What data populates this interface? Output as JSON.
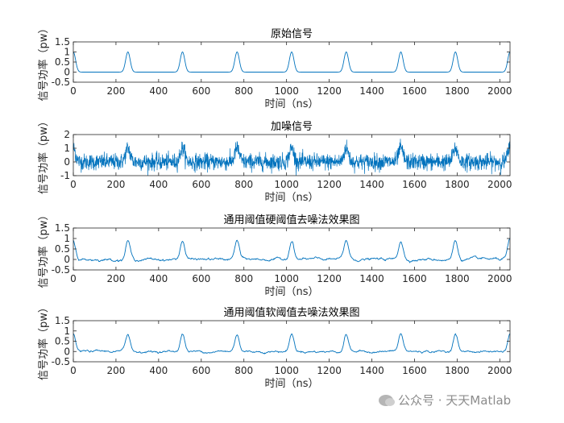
{
  "chart_data": [
    {
      "type": "line",
      "title": "原始信号",
      "xlabel": "时间（ns）",
      "ylabel": "信号功率（pw）",
      "xlim": [
        0,
        2048
      ],
      "ylim": [
        -0.5,
        1.5
      ],
      "xticks": [
        0,
        200,
        400,
        600,
        800,
        1000,
        1200,
        1400,
        1600,
        1800,
        2000
      ],
      "yticks": [
        -0.5,
        0,
        0.5,
        1,
        1.5
      ],
      "ytick_labels": [
        "-0.5",
        "0",
        "0.5",
        "1",
        "1.5"
      ],
      "grid": false,
      "series_color": "#0072bd",
      "signal": {
        "kind": "clean",
        "peak_centers": [
          0,
          256,
          512,
          768,
          1024,
          1280,
          1536,
          1792,
          2048
        ],
        "peak_height": 1.0,
        "peak_width": 15
      }
    },
    {
      "type": "line",
      "title": "加噪信号",
      "xlabel": "时间（ns）",
      "ylabel": "信号功率（pw）",
      "xlim": [
        0,
        2048
      ],
      "ylim": [
        -1,
        2
      ],
      "xticks": [
        0,
        200,
        400,
        600,
        800,
        1000,
        1200,
        1400,
        1600,
        1800,
        2000
      ],
      "yticks": [
        -1,
        0,
        1,
        2
      ],
      "ytick_labels": [
        "-1",
        "0",
        "1",
        "2"
      ],
      "grid": false,
      "series_color": "#0072bd",
      "signal": {
        "kind": "noisy",
        "peak_centers": [
          0,
          256,
          512,
          768,
          1024,
          1280,
          1536,
          1792,
          2048
        ],
        "peak_height": 1.0,
        "peak_width": 15,
        "noise_amplitude": 0.3
      }
    },
    {
      "type": "line",
      "title": "通用阈值硬阈值去噪法效果图",
      "xlabel": "时间（ns）",
      "ylabel": "信号功率（pw）",
      "xlim": [
        0,
        2048
      ],
      "ylim": [
        -0.5,
        1.5
      ],
      "xticks": [
        0,
        200,
        400,
        600,
        800,
        1000,
        1200,
        1400,
        1600,
        1800,
        2000
      ],
      "yticks": [
        -0.5,
        0,
        0.5,
        1,
        1.5
      ],
      "ytick_labels": [
        "-0.5",
        "0",
        "0.5",
        "1",
        "1.5"
      ],
      "grid": false,
      "series_color": "#0072bd",
      "signal": {
        "kind": "denoised",
        "peak_centers": [
          0,
          256,
          512,
          768,
          1024,
          1280,
          1536,
          1792,
          2048
        ],
        "peak_height": 0.9,
        "peak_width": 15,
        "ripple_amplitude": 0.07
      }
    },
    {
      "type": "line",
      "title": "通用阈值软阈值去噪法效果图",
      "xlabel": "时间（ns）",
      "ylabel": "信号功率（pw）",
      "xlim": [
        0,
        2048
      ],
      "ylim": [
        -0.5,
        1.5
      ],
      "xticks": [
        0,
        200,
        400,
        600,
        800,
        1000,
        1200,
        1400,
        1600,
        1800,
        2000
      ],
      "yticks": [
        -0.5,
        0,
        0.5,
        1,
        1.5
      ],
      "ytick_labels": [
        "-0.5",
        "0",
        "0.5",
        "1",
        "1.5"
      ],
      "grid": false,
      "series_color": "#0072bd",
      "signal": {
        "kind": "denoised",
        "peak_centers": [
          0,
          256,
          512,
          768,
          1024,
          1280,
          1536,
          1792,
          2048
        ],
        "peak_height": 0.85,
        "peak_width": 15,
        "ripple_amplitude": 0.06
      }
    }
  ],
  "watermark": {
    "text": "公众号 · 天天Matlab",
    "icon": "wechat-icon"
  }
}
